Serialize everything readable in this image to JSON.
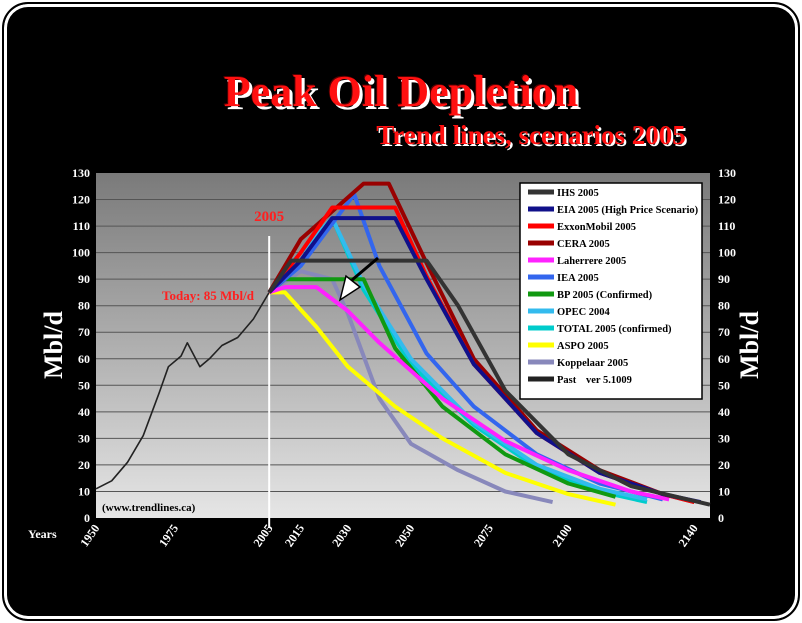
{
  "title": "Peak Oil Depletion",
  "subtitle": "Trend lines, scenarios 2005",
  "source_note": "(www.trendlines.ca)",
  "today_label": "Today: 85 Mbl/d",
  "year_marker_label": "2005",
  "x_axis_title": "Years",
  "colors": {
    "background": "#000000",
    "title": "#ff1010",
    "annotation": "#ff2020"
  },
  "chart_data": {
    "type": "line",
    "title": "Peak Oil Depletion",
    "subtitle": "Trend lines, scenarios 2005",
    "xlabel": "Years",
    "ylabel": "Mbl/d",
    "ylabel_right": "Mbl/d",
    "xlim": [
      1950,
      2145
    ],
    "ylim": [
      0,
      130
    ],
    "x_ticks": [
      1950,
      1975,
      2005,
      2015,
      2030,
      2050,
      2075,
      2100,
      2140
    ],
    "y_ticks": [
      0,
      10,
      20,
      30,
      40,
      50,
      60,
      70,
      80,
      90,
      100,
      110,
      120,
      130
    ],
    "grid": true,
    "legend_position": "top-right",
    "legend_version": "ver 5.1009",
    "marker_year": 2005,
    "series": [
      {
        "name": "IHS 2005",
        "color": "#333333",
        "points": [
          [
            2005,
            85
          ],
          [
            2012,
            97
          ],
          [
            2055,
            97
          ],
          [
            2065,
            80
          ],
          [
            2080,
            48
          ],
          [
            2100,
            24
          ],
          [
            2120,
            12
          ],
          [
            2145,
            5
          ]
        ]
      },
      {
        "name": "EIA 2005 (High Price Scenario)",
        "color": "#10108a",
        "points": [
          [
            2005,
            85
          ],
          [
            2015,
            97
          ],
          [
            2025,
            113
          ],
          [
            2045,
            113
          ],
          [
            2055,
            90
          ],
          [
            2070,
            58
          ],
          [
            2090,
            32
          ],
          [
            2110,
            17
          ],
          [
            2130,
            9
          ],
          [
            2142,
            6
          ]
        ]
      },
      {
        "name": "ExxonMobil 2005",
        "color": "#ff0000",
        "points": [
          [
            2005,
            85
          ],
          [
            2015,
            100
          ],
          [
            2025,
            117
          ],
          [
            2045,
            117
          ],
          [
            2055,
            91
          ],
          [
            2070,
            58
          ],
          [
            2090,
            32
          ],
          [
            2110,
            17
          ],
          [
            2130,
            9
          ],
          [
            2140,
            6
          ]
        ]
      },
      {
        "name": "CERA 2005",
        "color": "#990000",
        "points": [
          [
            2005,
            85
          ],
          [
            2015,
            105
          ],
          [
            2035,
            126
          ],
          [
            2043,
            126
          ],
          [
            2055,
            96
          ],
          [
            2070,
            60
          ],
          [
            2090,
            33
          ],
          [
            2110,
            18
          ],
          [
            2130,
            9
          ],
          [
            2140,
            6
          ]
        ]
      },
      {
        "name": "Laherrere 2005",
        "color": "#ff22ff",
        "points": [
          [
            2005,
            85
          ],
          [
            2010,
            87
          ],
          [
            2020,
            87
          ],
          [
            2030,
            78
          ],
          [
            2040,
            66
          ],
          [
            2060,
            45
          ],
          [
            2080,
            29
          ],
          [
            2100,
            18
          ],
          [
            2120,
            10
          ],
          [
            2132,
            7
          ]
        ]
      },
      {
        "name": "IEA 2005",
        "color": "#3366ee",
        "points": [
          [
            2005,
            85
          ],
          [
            2015,
            95
          ],
          [
            2032,
            122
          ],
          [
            2040,
            95
          ],
          [
            2055,
            62
          ],
          [
            2070,
            42
          ],
          [
            2090,
            24
          ],
          [
            2110,
            13
          ],
          [
            2130,
            7
          ]
        ]
      },
      {
        "name": "BP 2005 (Confirmed)",
        "color": "#119911",
        "points": [
          [
            2005,
            85
          ],
          [
            2010,
            90
          ],
          [
            2025,
            90
          ],
          [
            2035,
            90
          ],
          [
            2045,
            64
          ],
          [
            2060,
            42
          ],
          [
            2080,
            24
          ],
          [
            2100,
            13
          ],
          [
            2115,
            8
          ]
        ]
      },
      {
        "name": "OPEC 2004",
        "color": "#33bbee",
        "points": [
          [
            2005,
            85
          ],
          [
            2012,
            96
          ],
          [
            2025,
            113
          ],
          [
            2035,
            88
          ],
          [
            2050,
            60
          ],
          [
            2070,
            36
          ],
          [
            2090,
            20
          ],
          [
            2110,
            11
          ],
          [
            2125,
            7
          ]
        ]
      },
      {
        "name": "TOTAL 2005 (confirmed)",
        "color": "#00cccc",
        "points": [
          [
            2005,
            85
          ],
          [
            2015,
            95
          ],
          [
            2025,
            113
          ],
          [
            2035,
            86
          ],
          [
            2050,
            58
          ],
          [
            2070,
            35
          ],
          [
            2090,
            19
          ],
          [
            2110,
            10
          ],
          [
            2125,
            6
          ]
        ]
      },
      {
        "name": "ASPO 2005",
        "color": "#ffff00",
        "points": [
          [
            2005,
            85
          ],
          [
            2010,
            85
          ],
          [
            2020,
            72
          ],
          [
            2030,
            57
          ],
          [
            2045,
            42
          ],
          [
            2060,
            30
          ],
          [
            2080,
            17
          ],
          [
            2100,
            9
          ],
          [
            2115,
            5
          ]
        ]
      },
      {
        "name": "Koppelaar 2005",
        "color": "#8888bb",
        "points": [
          [
            2005,
            85
          ],
          [
            2015,
            93
          ],
          [
            2025,
            90
          ],
          [
            2030,
            77
          ],
          [
            2040,
            45
          ],
          [
            2050,
            28
          ],
          [
            2065,
            18
          ],
          [
            2080,
            10
          ],
          [
            2095,
            6
          ]
        ]
      },
      {
        "name": "Past",
        "color": "#222222",
        "points": [
          [
            1950,
            11
          ],
          [
            1955,
            14
          ],
          [
            1960,
            21
          ],
          [
            1965,
            31
          ],
          [
            1970,
            47
          ],
          [
            1973,
            57
          ],
          [
            1977,
            61
          ],
          [
            1979,
            66
          ],
          [
            1983,
            57
          ],
          [
            1986,
            60
          ],
          [
            1990,
            65
          ],
          [
            1995,
            68
          ],
          [
            2000,
            75
          ],
          [
            2005,
            85
          ]
        ]
      }
    ]
  }
}
